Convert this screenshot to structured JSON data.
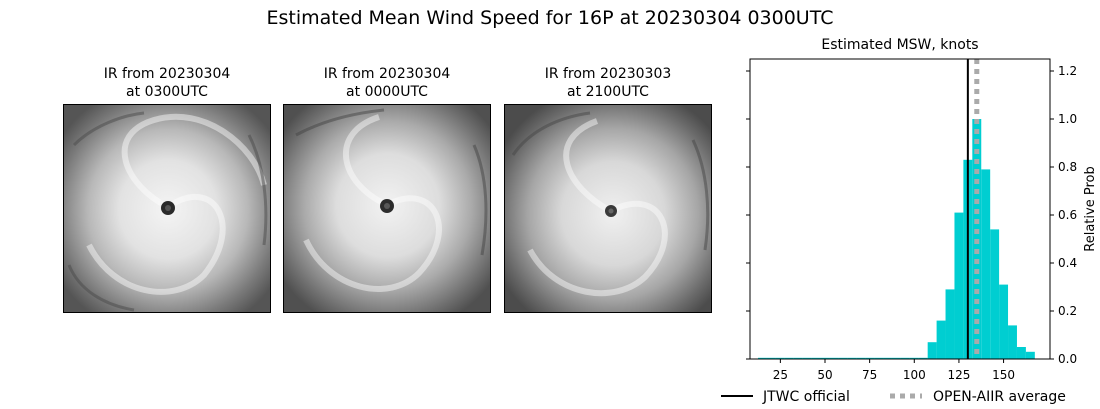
{
  "figure": {
    "title": "Estimated Mean Wind Speed for 16P at 20230304 0300UTC"
  },
  "ir_panels": [
    {
      "line1": "IR from 20230304",
      "line2": "at 0300UTC"
    },
    {
      "line1": "IR from 20230304",
      "line2": "at 0000UTC"
    },
    {
      "line1": "IR from 20230303",
      "line2": "at 2100UTC"
    }
  ],
  "chart_data": {
    "type": "bar",
    "title": "Estimated MSW, knots",
    "xlabel": "",
    "ylabel": "Relative Prob",
    "xlim": [
      8,
      176
    ],
    "ylim": [
      0,
      1.25
    ],
    "x_ticks": [
      25,
      50,
      75,
      100,
      125,
      150
    ],
    "y_ticks": [
      0.0,
      0.2,
      0.4,
      0.6,
      0.8,
      1.0,
      1.2
    ],
    "y_tick_labels": [
      "0.0",
      "0.2",
      "0.4",
      "0.6",
      "0.8",
      "1.0",
      "1.2"
    ],
    "y_axis_side": "right",
    "bar_color": "#00CED1",
    "bin_width": 5,
    "bins": [
      {
        "x": 15,
        "value": 0.005
      },
      {
        "x": 20,
        "value": 0.005
      },
      {
        "x": 25,
        "value": 0.005
      },
      {
        "x": 30,
        "value": 0.005
      },
      {
        "x": 35,
        "value": 0.005
      },
      {
        "x": 40,
        "value": 0.005
      },
      {
        "x": 45,
        "value": 0.005
      },
      {
        "x": 50,
        "value": 0.005
      },
      {
        "x": 55,
        "value": 0.005
      },
      {
        "x": 60,
        "value": 0.005
      },
      {
        "x": 65,
        "value": 0.005
      },
      {
        "x": 70,
        "value": 0.005
      },
      {
        "x": 75,
        "value": 0.005
      },
      {
        "x": 80,
        "value": 0.005
      },
      {
        "x": 85,
        "value": 0.005
      },
      {
        "x": 90,
        "value": 0.005
      },
      {
        "x": 95,
        "value": 0.005
      },
      {
        "x": 100,
        "value": 0.005
      },
      {
        "x": 105,
        "value": 0.005
      },
      {
        "x": 110,
        "value": 0.07
      },
      {
        "x": 115,
        "value": 0.16
      },
      {
        "x": 120,
        "value": 0.29
      },
      {
        "x": 125,
        "value": 0.61
      },
      {
        "x": 130,
        "value": 0.83
      },
      {
        "x": 135,
        "value": 1.0
      },
      {
        "x": 140,
        "value": 0.79
      },
      {
        "x": 145,
        "value": 0.54
      },
      {
        "x": 150,
        "value": 0.31
      },
      {
        "x": 155,
        "value": 0.14
      },
      {
        "x": 160,
        "value": 0.05
      },
      {
        "x": 165,
        "value": 0.03
      }
    ],
    "lines": [
      {
        "name": "JTWC official",
        "x": 130,
        "color": "#000000",
        "style": "solid"
      },
      {
        "name": "OPEN-AIIR average",
        "x": 135,
        "color": "#aaaaaa",
        "style": "dotted"
      }
    ],
    "legend_position": "bottom"
  }
}
